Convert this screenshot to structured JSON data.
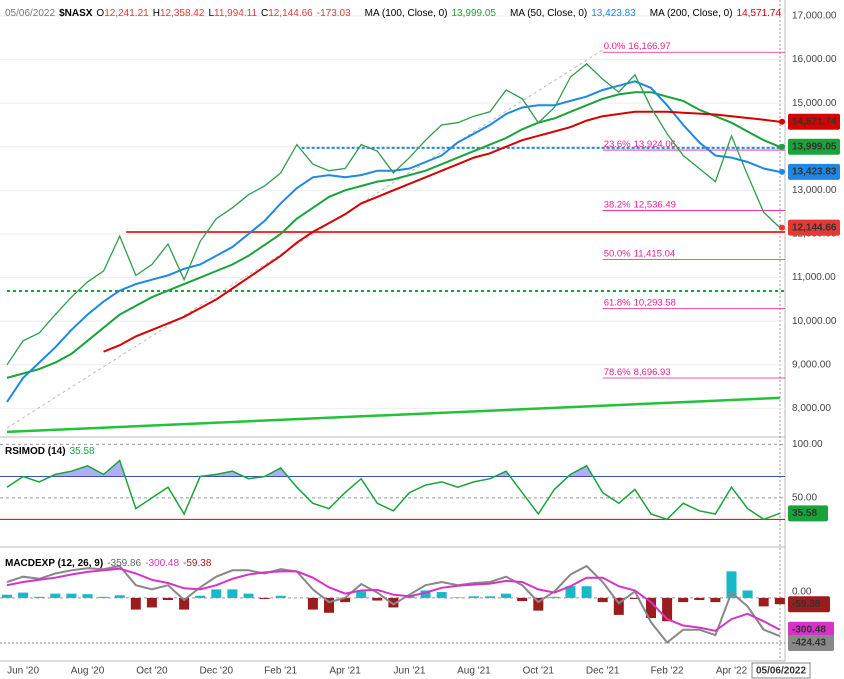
{
  "chart_data": [
    {
      "type": "line",
      "date": "05/06/2022",
      "symbol": "$NASX",
      "ohlc": [
        {
          "label": "O",
          "value": "12,241.21"
        },
        {
          "label": "H",
          "value": "12,358.42"
        },
        {
          "label": "L",
          "value": "11,994.11"
        },
        {
          "label": "C",
          "value": "12,144.66"
        }
      ],
      "change": "-173.03",
      "categories": [
        null,
        "Jun '20",
        null,
        null,
        null,
        "Aug '20",
        null,
        null,
        null,
        "Oct '20",
        null,
        null,
        null,
        "Dec '20",
        null,
        null,
        null,
        "Feb '21",
        null,
        null,
        null,
        "Apr '21",
        null,
        null,
        null,
        "Jun '21",
        null,
        null,
        null,
        "Aug '21",
        null,
        null,
        null,
        "Oct '21",
        null,
        null,
        null,
        "Dec '21",
        null,
        null,
        null,
        "Feb '22",
        null,
        null,
        null,
        "Apr '22",
        null,
        null,
        null
      ],
      "color": "#2e9d4f",
      "values": [
        9000,
        9550,
        9730,
        10150,
        10550,
        10900,
        11150,
        11950,
        11050,
        11300,
        11770,
        10950,
        11830,
        12350,
        12600,
        12900,
        13100,
        13400,
        14050,
        13600,
        13450,
        13500,
        14050,
        13900,
        13400,
        13750,
        14150,
        14500,
        14550,
        14700,
        14800,
        15300,
        15100,
        14550,
        14900,
        15600,
        15900,
        15550,
        15250,
        15650,
        14900,
        14300,
        13800,
        13500,
        13200,
        14250,
        13350,
        12500,
        12144.66
      ],
      "series": [
        {
          "name": "MA (100, Close, 0)",
          "last_label": "13,999.05",
          "color": "#1aa33a",
          "values": [
            8700,
            8800,
            8900,
            9050,
            9250,
            9550,
            9850,
            10150,
            10350,
            10550,
            10700,
            10850,
            11000,
            11150,
            11300,
            11500,
            11750,
            12000,
            12350,
            12600,
            12850,
            13000,
            13100,
            13200,
            13250,
            13350,
            13450,
            13600,
            13750,
            13900,
            14050,
            14200,
            14400,
            14550,
            14650,
            14800,
            14950,
            15100,
            15200,
            15250,
            15250,
            15150,
            15050,
            14850,
            14700,
            14550,
            14350,
            14150,
            13999.05
          ]
        },
        {
          "name": "MA (50, Close, 0)",
          "last_label": "13,423.83",
          "color": "#1e88e5",
          "values": [
            8150,
            8700,
            9050,
            9400,
            9800,
            10150,
            10450,
            10700,
            10850,
            10950,
            11050,
            11200,
            11300,
            11500,
            11700,
            12000,
            12300,
            12700,
            13050,
            13300,
            13350,
            13300,
            13350,
            13450,
            13450,
            13500,
            13650,
            13800,
            14100,
            14300,
            14500,
            14750,
            14900,
            14950,
            14950,
            15050,
            15150,
            15300,
            15400,
            15500,
            15350,
            14950,
            14500,
            14100,
            13800,
            13750,
            13650,
            13500,
            13423.83
          ]
        },
        {
          "name": "MA (200, Close, 0)",
          "last_label": "14,571.74",
          "color": "#d50000",
          "values": [
            null,
            null,
            null,
            null,
            null,
            null,
            9300,
            9450,
            9650,
            9800,
            9950,
            10100,
            10300,
            10500,
            10750,
            11000,
            11250,
            11500,
            11800,
            12050,
            12250,
            12450,
            12700,
            12850,
            13000,
            13150,
            13300,
            13450,
            13600,
            13750,
            13850,
            14000,
            14150,
            14250,
            14350,
            14450,
            14600,
            14700,
            14750,
            14800,
            14800,
            14800,
            14780,
            14760,
            14740,
            14700,
            14660,
            14620,
            14571.74
          ]
        }
      ],
      "price_tags": [
        {
          "value": 14571.74,
          "label": "14,571.74",
          "color": "#d50000"
        },
        {
          "value": 13999.05,
          "label": "13,999.05",
          "color": "#1aa33a"
        },
        {
          "value": 13423.83,
          "label": "13,423.83",
          "color": "#1e88e5"
        },
        {
          "value": 12144.66,
          "label": "12,144.66",
          "color": "#e53935"
        }
      ],
      "levels": [
        {
          "value": 12046,
          "from_x": 7.4,
          "color": "#e53935",
          "dash": "none"
        },
        {
          "value": 13973,
          "from_x": 18.3,
          "color": "#1e88e5",
          "dash": "3 2"
        },
        {
          "value": 10693,
          "from_x": 0,
          "color": "#1aa33a",
          "dash": "3 3"
        }
      ],
      "fib_from_x": 37,
      "fib_color": "#e91e8c",
      "fib_levels": [
        {
          "ratio": "0.0%",
          "value": 16166.97,
          "label": "16,166.97"
        },
        {
          "ratio": "23.6%",
          "value": 13924.06,
          "label": "13,924.06"
        },
        {
          "ratio": "38.2%",
          "value": 12536.49,
          "label": "12,536.49"
        },
        {
          "ratio": "50.0%",
          "value": 11415.04,
          "label": "11,415.04"
        },
        {
          "ratio": "61.8%",
          "value": 10293.58,
          "label": "10,293.58"
        },
        {
          "ratio": "78.6%",
          "value": 8696.93,
          "label": "8,696.93"
        }
      ],
      "trendlines": [
        {
          "x": [
            0,
            48
          ],
          "values": [
            7460,
            8240
          ],
          "color": "#22c33a",
          "dash": "none",
          "width": 2.5
        },
        {
          "x": [
            0,
            37
          ],
          "values": [
            7550,
            16220
          ],
          "color": "#bbbbbb",
          "dash": "3 3",
          "width": 1
        }
      ],
      "ylim": [
        7390,
        17250
      ],
      "yticks": [
        {
          "value": 8000,
          "label": "8,000.00"
        },
        {
          "value": 9000,
          "label": "9,000.00"
        },
        {
          "value": 10000,
          "label": "10,000.00"
        },
        {
          "value": 11000,
          "label": "11,000.00"
        },
        {
          "value": 12000,
          "label": "12,000.00"
        },
        {
          "value": 13000,
          "label": "13,000.00"
        },
        {
          "value": 14000,
          "label": "14,000.00"
        },
        {
          "value": 15000,
          "label": "15,000.00"
        },
        {
          "value": 16000,
          "label": "16,000.00"
        },
        {
          "value": 17000,
          "label": "17,000.00"
        }
      ]
    },
    {
      "type": "line",
      "title": "RSIMOD (14)",
      "last_label": "35.58",
      "color": "#1aa33a",
      "tag_color": "#1aa33a",
      "values": [
        60,
        70,
        65,
        72,
        75,
        80,
        72,
        85,
        40,
        50,
        60,
        35,
        70,
        72,
        75,
        68,
        70,
        78,
        60,
        45,
        40,
        55,
        68,
        45,
        38,
        55,
        62,
        65,
        60,
        65,
        68,
        75,
        55,
        35,
        58,
        72,
        80,
        55,
        45,
        58,
        35,
        30,
        45,
        38,
        35,
        60,
        40,
        30,
        35.58
      ],
      "overbought": 70,
      "oversold": 30,
      "ylim": [
        6,
        106
      ],
      "yticks": [
        {
          "value": 100,
          "label": "100.00"
        },
        {
          "value": 50,
          "label": "50.00"
        }
      ]
    },
    {
      "type": "macd",
      "title": "MACDEXP (12, 26, 9)",
      "macd": {
        "last_label": "-359.86",
        "color": "#888888",
        "values": [
          150,
          200,
          180,
          230,
          260,
          280,
          270,
          300,
          120,
          80,
          120,
          -20,
          100,
          200,
          260,
          260,
          230,
          270,
          250,
          80,
          -40,
          0,
          130,
          50,
          -60,
          30,
          120,
          150,
          120,
          140,
          150,
          200,
          120,
          -40,
          60,
          220,
          300,
          150,
          -50,
          60,
          -230,
          -420,
          -300,
          -300,
          -350,
          50,
          -80,
          -300,
          -359.86
        ]
      },
      "signal": {
        "last_label": "-300.48",
        "color": "#d633c8",
        "values": [
          120,
          150,
          170,
          190,
          220,
          245,
          260,
          275,
          230,
          170,
          140,
          90,
          80,
          120,
          180,
          220,
          240,
          250,
          250,
          190,
          100,
          40,
          70,
          75,
          30,
          15,
          50,
          95,
          115,
          125,
          135,
          160,
          150,
          80,
          50,
          110,
          190,
          190,
          110,
          70,
          -40,
          -200,
          -260,
          -280,
          -310,
          -200,
          -150,
          -220,
          -300.48
        ]
      },
      "histogram": {
        "last_label": "-59.38",
        "color": "#9b1c1c",
        "up_color": "#17b8c8",
        "values": [
          30,
          50,
          10,
          40,
          40,
          35,
          10,
          25,
          -110,
          -90,
          -20,
          -110,
          20,
          80,
          80,
          40,
          -10,
          20,
          0,
          -110,
          -140,
          -40,
          60,
          -25,
          -90,
          15,
          70,
          55,
          5,
          15,
          15,
          40,
          -30,
          -120,
          10,
          110,
          110,
          -40,
          -160,
          -10,
          -190,
          -220,
          -40,
          -20,
          -40,
          250,
          70,
          -80,
          -59.38
        ]
      },
      "reference": {
        "value": -424.43,
        "label": "-424.43"
      },
      "ylim": [
        -585,
        470
      ],
      "yticks": [
        {
          "value": 0,
          "label": "0.00"
        }
      ]
    }
  ]
}
